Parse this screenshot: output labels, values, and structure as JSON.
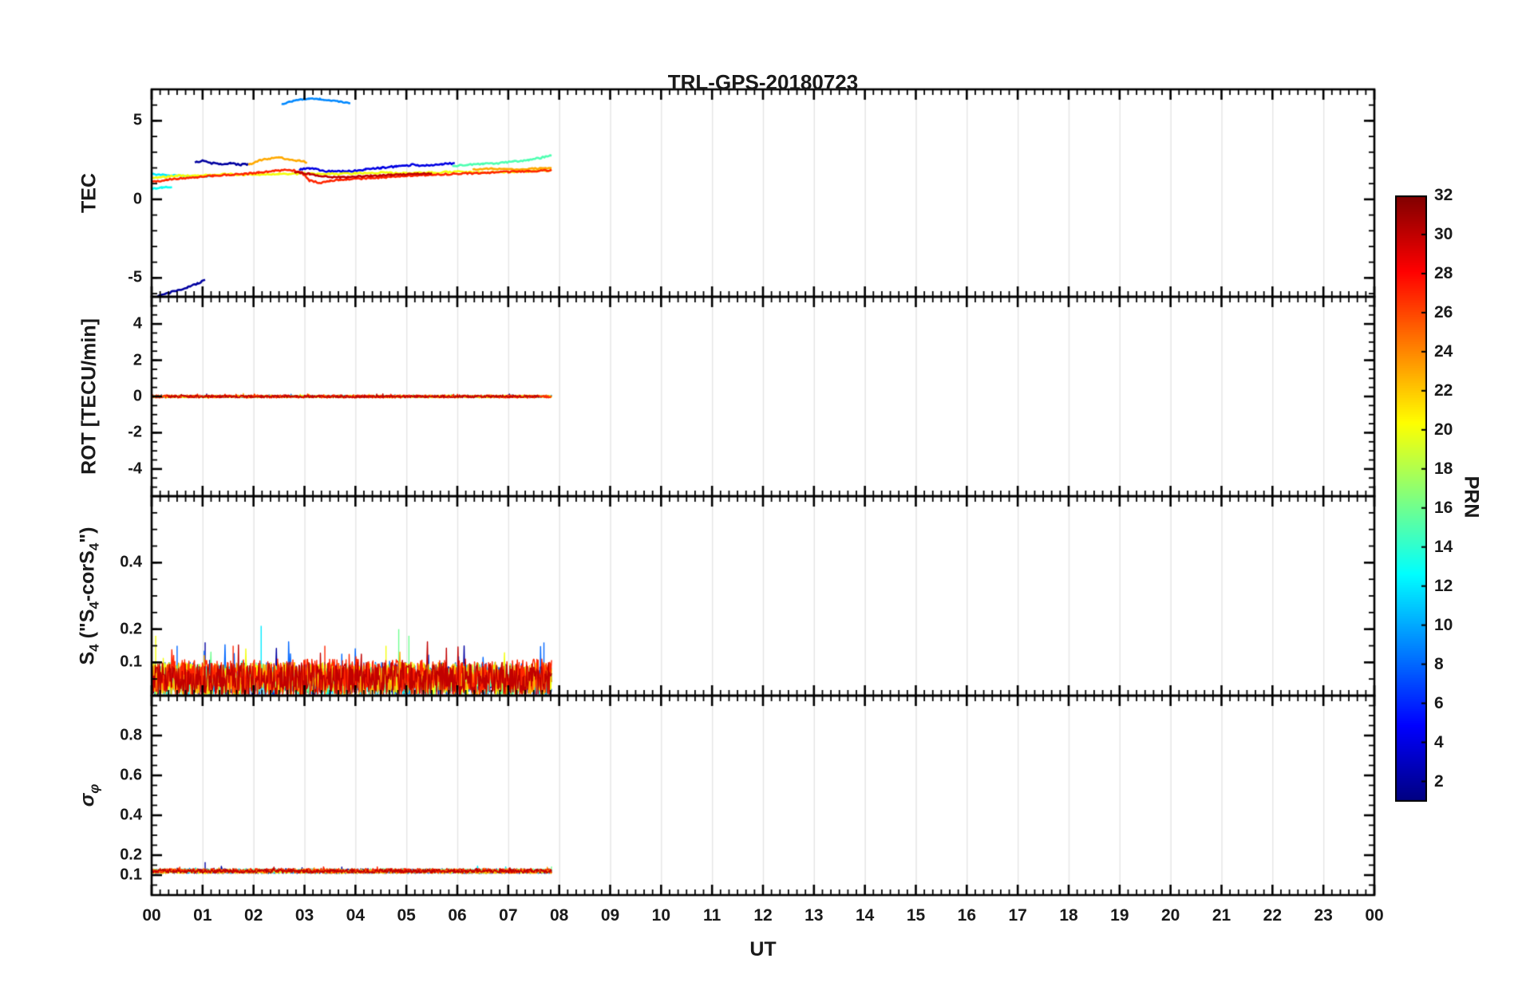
{
  "title": "TRL-GPS-20180723",
  "xlabel": "UT",
  "colorbar": {
    "label": "PRN",
    "min": 1,
    "max": 32,
    "ticks": [
      2,
      4,
      6,
      8,
      10,
      12,
      14,
      16,
      18,
      20,
      22,
      24,
      26,
      28,
      30,
      32
    ]
  },
  "x_axis": {
    "min": 0,
    "max": 24,
    "tick_step": 1,
    "minor_step_minutes": 10,
    "tick_labels": [
      "00",
      "01",
      "02",
      "03",
      "04",
      "05",
      "06",
      "07",
      "08",
      "09",
      "10",
      "11",
      "12",
      "13",
      "14",
      "15",
      "16",
      "17",
      "18",
      "19",
      "20",
      "21",
      "22",
      "23",
      "00"
    ]
  },
  "chart_data": {
    "type": "line",
    "title": "TRL-GPS-20180723",
    "xlabel": "UT",
    "grid": "vertical-hour-lines",
    "legend": "colorbar-PRN-jet",
    "panels": [
      {
        "name": "tec",
        "ylabel": "TEC",
        "ylabel_parts": [
          [
            "TEC",
            false
          ]
        ],
        "ylabel_italic": false,
        "ylim": [
          -6.2,
          7.0
        ],
        "yticks": [
          5,
          0,
          -5
        ],
        "yminor": 1,
        "series": [
          {
            "prn": 2,
            "style": "points",
            "jitter": 0.05,
            "points": [
              [
                0.0,
                -6.3
              ],
              [
                0.2,
                -6.1
              ],
              [
                0.45,
                -5.85
              ],
              [
                0.7,
                -5.6
              ],
              [
                0.9,
                -5.35
              ],
              [
                1.05,
                -5.15
              ]
            ]
          },
          {
            "prn": 2,
            "style": "points",
            "jitter": 0.05,
            "points": [
              [
                0.85,
                2.35
              ],
              [
                1.0,
                2.45
              ],
              [
                1.15,
                2.3
              ],
              [
                1.35,
                2.25
              ],
              [
                1.55,
                2.3
              ],
              [
                1.75,
                2.2
              ],
              [
                1.9,
                2.25
              ]
            ]
          },
          {
            "prn": 4,
            "style": "points",
            "jitter": 0.06,
            "points": [
              [
                2.9,
                1.9
              ],
              [
                3.1,
                2.0
              ],
              [
                3.3,
                1.85
              ],
              [
                3.6,
                1.75
              ],
              [
                3.9,
                1.8
              ],
              [
                4.2,
                1.9
              ],
              [
                4.5,
                2.0
              ],
              [
                4.8,
                2.1
              ],
              [
                5.1,
                2.2
              ],
              [
                5.4,
                2.15
              ],
              [
                5.7,
                2.25
              ],
              [
                5.95,
                2.3
              ]
            ]
          },
          {
            "prn": 9,
            "style": "points",
            "jitter": 0.03,
            "points": [
              [
                2.55,
                6.05
              ],
              [
                2.7,
                6.2
              ],
              [
                2.9,
                6.35
              ],
              [
                3.1,
                6.4
              ],
              [
                3.3,
                6.38
              ],
              [
                3.5,
                6.3
              ],
              [
                3.7,
                6.22
              ],
              [
                3.9,
                6.12
              ]
            ]
          },
          {
            "prn": 12,
            "style": "points",
            "jitter": 0.04,
            "points": [
              [
                0.0,
                1.6
              ],
              [
                0.3,
                1.55
              ],
              [
                0.6,
                1.5
              ],
              [
                0.9,
                1.45
              ],
              [
                1.2,
                1.5
              ]
            ]
          },
          {
            "prn": 13,
            "style": "points",
            "jitter": 0.04,
            "points": [
              [
                0.0,
                0.65
              ],
              [
                0.2,
                0.75
              ],
              [
                0.4,
                0.8
              ]
            ]
          },
          {
            "prn": 15,
            "style": "points",
            "jitter": 0.05,
            "points": [
              [
                5.9,
                2.1
              ],
              [
                6.2,
                2.2
              ],
              [
                6.5,
                2.25
              ],
              [
                6.8,
                2.3
              ],
              [
                7.1,
                2.4
              ],
              [
                7.4,
                2.5
              ],
              [
                7.65,
                2.65
              ],
              [
                7.85,
                2.8
              ]
            ]
          },
          {
            "prn": 20,
            "style": "points",
            "jitter": 0.05,
            "points": [
              [
                0.0,
                1.35
              ],
              [
                0.5,
                1.5
              ],
              [
                1.0,
                1.55
              ],
              [
                1.5,
                1.6
              ],
              [
                2.0,
                1.55
              ],
              [
                2.5,
                1.6
              ],
              [
                3.0,
                1.65
              ],
              [
                3.5,
                1.6
              ],
              [
                4.0,
                1.65
              ],
              [
                4.5,
                1.7
              ],
              [
                5.0,
                1.65
              ],
              [
                5.5,
                1.7
              ],
              [
                6.0,
                1.75
              ],
              [
                6.5,
                1.7
              ],
              [
                7.0,
                1.75
              ],
              [
                7.5,
                1.8
              ],
              [
                7.85,
                1.85
              ]
            ]
          },
          {
            "prn": 23,
            "style": "points",
            "jitter": 0.05,
            "points": [
              [
                1.9,
                2.2
              ],
              [
                2.1,
                2.45
              ],
              [
                2.3,
                2.6
              ],
              [
                2.5,
                2.65
              ],
              [
                2.7,
                2.55
              ],
              [
                2.9,
                2.45
              ],
              [
                3.05,
                2.35
              ]
            ]
          },
          {
            "prn": 23,
            "style": "points",
            "jitter": 0.04,
            "points": [
              [
                6.3,
                1.9
              ],
              [
                6.7,
                1.95
              ],
              [
                7.1,
                1.9
              ],
              [
                7.5,
                1.95
              ],
              [
                7.85,
                2.0
              ]
            ]
          },
          {
            "prn": 27,
            "style": "points",
            "jitter": 0.05,
            "points": [
              [
                0.0,
                1.1
              ],
              [
                0.3,
                1.25
              ],
              [
                0.6,
                1.35
              ],
              [
                0.9,
                1.4
              ],
              [
                1.2,
                1.5
              ],
              [
                1.5,
                1.55
              ],
              [
                1.8,
                1.6
              ],
              [
                2.1,
                1.7
              ],
              [
                2.4,
                1.8
              ],
              [
                2.7,
                1.9
              ],
              [
                2.95,
                1.7
              ],
              [
                3.1,
                1.2
              ],
              [
                3.3,
                1.05
              ],
              [
                3.5,
                1.15
              ],
              [
                3.7,
                1.25
              ],
              [
                4.0,
                1.3
              ],
              [
                4.3,
                1.35
              ],
              [
                4.6,
                1.4
              ],
              [
                5.0,
                1.5
              ],
              [
                5.4,
                1.55
              ],
              [
                5.8,
                1.6
              ],
              [
                6.2,
                1.65
              ],
              [
                6.6,
                1.7
              ],
              [
                7.0,
                1.75
              ],
              [
                7.4,
                1.8
              ],
              [
                7.85,
                1.85
              ]
            ]
          },
          {
            "prn": 30,
            "style": "points",
            "jitter": 0.05,
            "points": [
              [
                2.8,
                1.75
              ],
              [
                3.1,
                1.6
              ],
              [
                3.4,
                1.45
              ],
              [
                3.7,
                1.4
              ],
              [
                4.0,
                1.45
              ],
              [
                4.3,
                1.5
              ],
              [
                4.7,
                1.55
              ],
              [
                5.1,
                1.6
              ],
              [
                5.5,
                1.65
              ]
            ]
          }
        ]
      },
      {
        "name": "rot",
        "ylabel": "ROT [TECU/min]",
        "ylabel_parts": [
          [
            "ROT [TECU/min]",
            false
          ]
        ],
        "ylabel_italic": false,
        "ylim": [
          -5.5,
          5.5
        ],
        "yticks": [
          4,
          2,
          0,
          -2,
          -4
        ],
        "yminor": 0.5,
        "series": [
          {
            "prn": 2,
            "style": "noisy",
            "x0": 0.0,
            "x1": 7.85,
            "mean": 0,
            "noise": 0.06
          },
          {
            "prn": 8,
            "style": "noisy",
            "x0": 0.0,
            "x1": 7.85,
            "mean": 0,
            "noise": 0.05
          },
          {
            "prn": 12,
            "style": "noisy",
            "x0": 0.0,
            "x1": 7.85,
            "mean": 0,
            "noise": 0.05
          },
          {
            "prn": 16,
            "style": "noisy",
            "x0": 0.0,
            "x1": 7.85,
            "mean": 0,
            "noise": 0.06
          },
          {
            "prn": 20,
            "style": "noisy",
            "x0": 0.0,
            "x1": 7.85,
            "mean": 0,
            "noise": 0.07
          },
          {
            "prn": 23,
            "style": "noisy",
            "x0": 0.0,
            "x1": 7.85,
            "mean": 0,
            "noise": 0.08
          },
          {
            "prn": 27,
            "style": "noisy",
            "x0": 0.0,
            "x1": 7.85,
            "mean": 0,
            "noise": 0.09
          },
          {
            "prn": 30,
            "style": "noisy",
            "x0": 0.3,
            "x1": 7.6,
            "mean": 0,
            "noise": 0.07
          }
        ]
      },
      {
        "name": "s4",
        "ylabel": "S4 (\"S4-corS4\")",
        "ylabel_parts": [
          [
            "S",
            false
          ],
          [
            "4",
            true
          ],
          [
            " (\"S",
            false
          ],
          [
            "4",
            true
          ],
          [
            "-corS",
            false
          ],
          [
            "4",
            true
          ],
          [
            "\")",
            false
          ]
        ],
        "ylabel_italic": false,
        "ylim": [
          0,
          0.6
        ],
        "yticks": [
          0.4,
          0.2,
          0.1
        ],
        "yminor": 0.05,
        "series": [
          {
            "prn": 2,
            "style": "noisy",
            "x0": 0.0,
            "x1": 7.85,
            "mean": 0.045,
            "noise": 0.045,
            "clamp_min": 0.004,
            "spikes": [
              [
                1.05,
                0.16
              ]
            ]
          },
          {
            "prn": 8,
            "style": "noisy",
            "x0": 0.0,
            "x1": 7.85,
            "mean": 0.05,
            "noise": 0.05,
            "clamp_min": 0.004,
            "spikes": [
              [
                0.5,
                0.15
              ],
              [
                7.7,
                0.16
              ]
            ]
          },
          {
            "prn": 12,
            "style": "noisy",
            "x0": 0.0,
            "x1": 7.85,
            "mean": 0.045,
            "noise": 0.045,
            "clamp_min": 0.004,
            "spikes": [
              [
                2.15,
                0.21
              ]
            ]
          },
          {
            "prn": 16,
            "style": "noisy",
            "x0": 0.0,
            "x1": 7.85,
            "mean": 0.05,
            "noise": 0.05,
            "clamp_min": 0.004,
            "spikes": [
              [
                4.85,
                0.2
              ],
              [
                5.05,
                0.18
              ]
            ]
          },
          {
            "prn": 20,
            "style": "noisy",
            "x0": 0.0,
            "x1": 7.85,
            "mean": 0.05,
            "noise": 0.05,
            "clamp_min": 0.004,
            "spikes": [
              [
                0.08,
                0.18
              ],
              [
                4.6,
                0.15
              ]
            ]
          },
          {
            "prn": 23,
            "style": "noisy",
            "x0": 0.0,
            "x1": 7.85,
            "mean": 0.05,
            "noise": 0.05,
            "clamp_min": 0.004
          },
          {
            "prn": 27,
            "style": "noisy",
            "x0": 0.0,
            "x1": 7.85,
            "mean": 0.055,
            "noise": 0.055,
            "clamp_min": 0.004,
            "spikes": [
              [
                1.6,
                0.15
              ],
              [
                3.4,
                0.15
              ]
            ]
          },
          {
            "prn": 30,
            "style": "noisy",
            "x0": 0.0,
            "x1": 7.85,
            "mean": 0.05,
            "noise": 0.05,
            "clamp_min": 0.004
          }
        ]
      },
      {
        "name": "sigma-phi",
        "ylabel": "sigma_phi",
        "ylabel_parts": [
          [
            "σ",
            false
          ],
          [
            "φ",
            true
          ]
        ],
        "ylabel_italic": true,
        "ylim": [
          0,
          1.0
        ],
        "yticks": [
          0.8,
          0.6,
          0.4,
          0.2,
          0.1
        ],
        "yminor": 0.05,
        "series": [
          {
            "prn": 2,
            "style": "noisy",
            "x0": 0.0,
            "x1": 7.85,
            "mean": 0.12,
            "noise": 0.012,
            "clamp_min": 0.09,
            "spikes": [
              [
                1.05,
                0.165
              ]
            ]
          },
          {
            "prn": 8,
            "style": "noisy",
            "x0": 0.0,
            "x1": 7.85,
            "mean": 0.118,
            "noise": 0.01,
            "clamp_min": 0.09
          },
          {
            "prn": 12,
            "style": "noisy",
            "x0": 0.0,
            "x1": 7.85,
            "mean": 0.12,
            "noise": 0.01,
            "clamp_min": 0.09
          },
          {
            "prn": 16,
            "style": "noisy",
            "x0": 0.0,
            "x1": 7.85,
            "mean": 0.122,
            "noise": 0.01,
            "clamp_min": 0.09
          },
          {
            "prn": 20,
            "style": "noisy",
            "x0": 0.0,
            "x1": 7.85,
            "mean": 0.118,
            "noise": 0.01,
            "clamp_min": 0.09
          },
          {
            "prn": 23,
            "style": "noisy",
            "x0": 0.0,
            "x1": 7.85,
            "mean": 0.12,
            "noise": 0.012,
            "clamp_min": 0.09
          },
          {
            "prn": 27,
            "style": "noisy",
            "x0": 0.0,
            "x1": 7.85,
            "mean": 0.122,
            "noise": 0.012,
            "clamp_min": 0.09
          },
          {
            "prn": 30,
            "style": "noisy",
            "x0": 0.0,
            "x1": 7.85,
            "mean": 0.12,
            "noise": 0.01,
            "clamp_min": 0.09
          }
        ]
      }
    ]
  }
}
